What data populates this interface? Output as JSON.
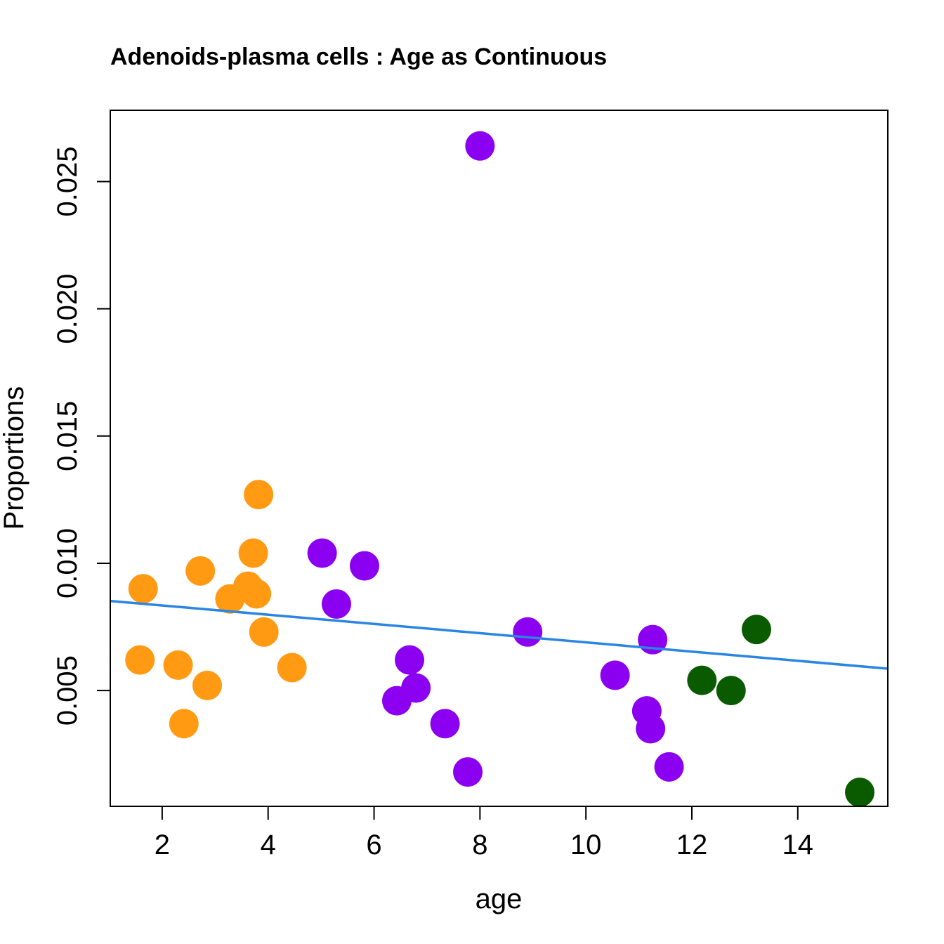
{
  "chart_data": {
    "type": "scatter",
    "title": "Adenoids-plasma cells : Age as Continuous",
    "xlabel": "age",
    "ylabel": "Proportions",
    "xlim": [
      1.02,
      15.7
    ],
    "ylim": [
      0.00045,
      0.0278
    ],
    "xticks": [
      2,
      4,
      6,
      8,
      10,
      12,
      14
    ],
    "yticks": [
      0.005,
      0.01,
      0.015,
      0.02,
      0.025
    ],
    "xtick_labels": [
      "2",
      "4",
      "6",
      "8",
      "10",
      "12",
      "14"
    ],
    "ytick_labels": [
      "0.005",
      "0.010",
      "0.015",
      "0.020",
      "0.025"
    ],
    "grid": false,
    "series": [
      {
        "name": "orange group",
        "color": "#FF9A12",
        "points": [
          {
            "x": 1.58,
            "y": 0.0062
          },
          {
            "x": 1.64,
            "y": 0.009
          },
          {
            "x": 2.3,
            "y": 0.006
          },
          {
            "x": 2.41,
            "y": 0.0037
          },
          {
            "x": 2.72,
            "y": 0.0097
          },
          {
            "x": 2.85,
            "y": 0.0052
          },
          {
            "x": 3.28,
            "y": 0.0086
          },
          {
            "x": 3.62,
            "y": 0.0091
          },
          {
            "x": 3.72,
            "y": 0.0104
          },
          {
            "x": 3.78,
            "y": 0.0088
          },
          {
            "x": 3.82,
            "y": 0.0127
          },
          {
            "x": 3.92,
            "y": 0.0073
          },
          {
            "x": 4.45,
            "y": 0.0059
          }
        ]
      },
      {
        "name": "purple group",
        "color": "#8B00F0",
        "points": [
          {
            "x": 5.02,
            "y": 0.0104
          },
          {
            "x": 5.29,
            "y": 0.0084
          },
          {
            "x": 5.82,
            "y": 0.0099
          },
          {
            "x": 6.43,
            "y": 0.0046
          },
          {
            "x": 6.67,
            "y": 0.0062
          },
          {
            "x": 6.79,
            "y": 0.0051
          },
          {
            "x": 7.34,
            "y": 0.0037
          },
          {
            "x": 7.77,
            "y": 0.0018
          },
          {
            "x": 8.0,
            "y": 0.0264
          },
          {
            "x": 8.9,
            "y": 0.0073
          },
          {
            "x": 10.55,
            "y": 0.0056
          },
          {
            "x": 11.15,
            "y": 0.0042
          },
          {
            "x": 11.22,
            "y": 0.0035
          },
          {
            "x": 11.26,
            "y": 0.007
          },
          {
            "x": 11.57,
            "y": 0.002
          }
        ]
      },
      {
        "name": "green group",
        "color": "#0A5A00",
        "points": [
          {
            "x": 12.19,
            "y": 0.0054
          },
          {
            "x": 12.74,
            "y": 0.005
          },
          {
            "x": 13.22,
            "y": 0.0074
          },
          {
            "x": 15.17,
            "y": 0.001
          }
        ]
      }
    ],
    "regression_line": {
      "color": "#2A86E0",
      "x": [
        1.02,
        15.7
      ],
      "y": [
        0.00852,
        0.00586
      ]
    }
  }
}
